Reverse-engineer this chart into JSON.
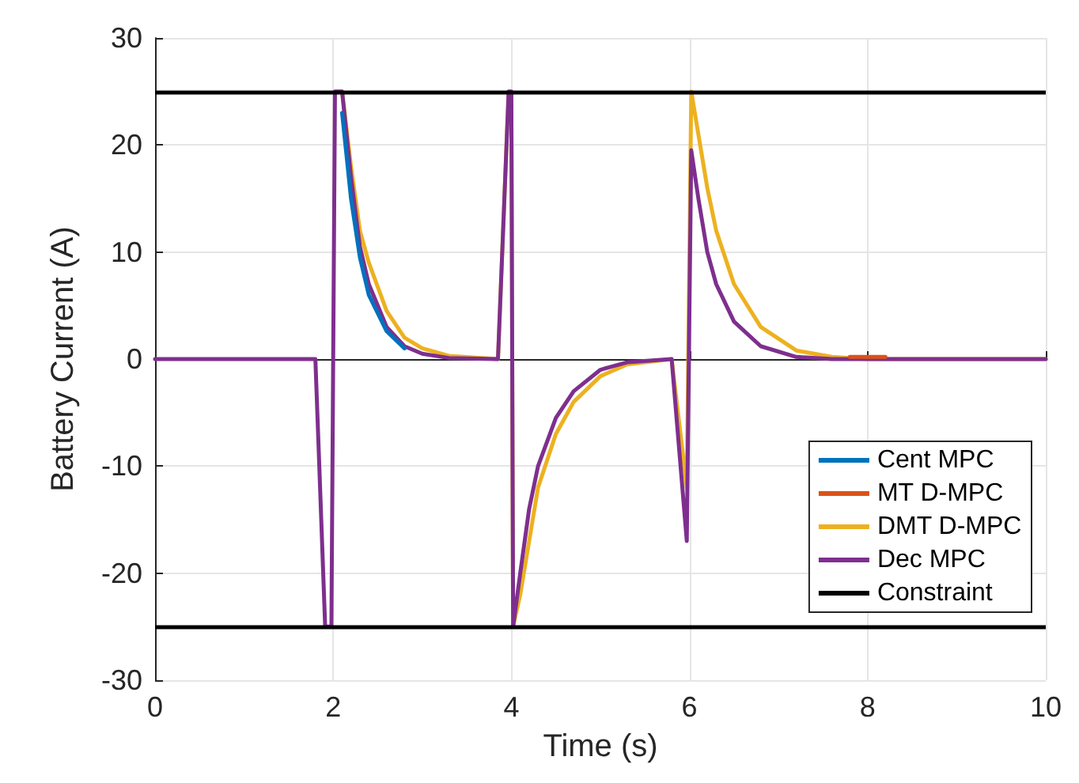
{
  "chart_data": {
    "type": "line",
    "xlabel": "Time (s)",
    "ylabel": "Battery Current (A)",
    "xlim": [
      0,
      10
    ],
    "xticks": [
      0,
      2,
      4,
      6,
      8,
      10
    ],
    "ylim": [
      -30,
      30
    ],
    "yticks": [
      -30,
      -20,
      -10,
      0,
      10,
      20,
      30
    ],
    "grid": true,
    "legend": "bottom right",
    "line_style": "solid",
    "marker": "none",
    "series": [
      {
        "name": "Cent MPC",
        "color": "#0072bd",
        "x": [
          2.1,
          2.2,
          2.3,
          2.4,
          2.6,
          2.8
        ],
        "values": [
          23,
          15,
          9.5,
          6,
          2.6,
          1
        ]
      },
      {
        "name": "MT D-MPC",
        "color": "#d95319",
        "x": [
          7.8,
          8.2
        ],
        "values": [
          0.2,
          0.2
        ]
      },
      {
        "name": "DMT D-MPC",
        "color": "#edb120",
        "x": [
          2.02,
          2.1,
          2.2,
          2.3,
          2.4,
          2.6,
          2.8,
          3.0,
          3.3,
          3.85,
          3.97,
          4.0,
          4.02,
          4.1,
          4.2,
          4.3,
          4.5,
          4.7,
          5.0,
          5.3,
          5.8,
          5.97,
          6.02,
          6.1,
          6.2,
          6.3,
          6.5,
          6.8,
          7.2,
          7.6,
          8.0,
          10
        ],
        "values": [
          25,
          25,
          18,
          12,
          9,
          4.5,
          2,
          1,
          0.3,
          0,
          25,
          25,
          -25,
          -22,
          -17,
          -12,
          -7,
          -4,
          -1.6,
          -0.5,
          0,
          -12,
          25,
          21,
          16,
          12,
          7,
          3,
          0.8,
          0.2,
          0,
          0
        ]
      },
      {
        "name": "Dec MPC",
        "color": "#7e2f8e",
        "x": [
          0,
          1.8,
          1.91,
          1.98,
          2.02,
          2.1,
          2.2,
          2.3,
          2.4,
          2.6,
          2.8,
          3.0,
          3.3,
          3.85,
          3.97,
          4.0,
          4.02,
          4.1,
          4.2,
          4.3,
          4.5,
          4.7,
          5.0,
          5.3,
          5.8,
          5.97,
          6.02,
          6.1,
          6.2,
          6.3,
          6.5,
          6.8,
          7.2,
          7.6,
          10
        ],
        "values": [
          0,
          0,
          -25,
          -25,
          25,
          25,
          17,
          10.5,
          7,
          3,
          1.2,
          0.5,
          0.1,
          0,
          25,
          25,
          -25,
          -20,
          -14,
          -10,
          -5.5,
          -3,
          -1,
          -0.3,
          0,
          -17,
          19.5,
          15,
          10,
          7,
          3.5,
          1.2,
          0.2,
          0,
          0
        ]
      }
    ],
    "ref_lines": [
      {
        "axis": "y",
        "value": 25,
        "label": "Constraint",
        "color": "#000000"
      },
      {
        "axis": "y",
        "value": -25,
        "color": "#000000"
      }
    ]
  }
}
